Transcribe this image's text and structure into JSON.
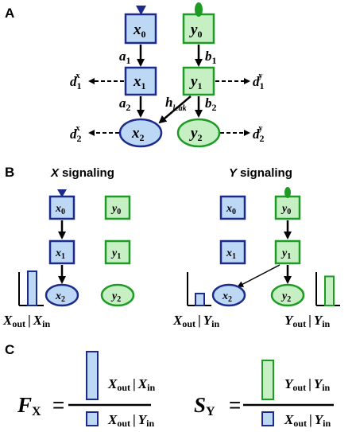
{
  "panels": {
    "a": "A",
    "b": "B",
    "c": "C"
  },
  "nodes": {
    "x": {
      "sym": "x",
      "subs": [
        "0",
        "1",
        "2"
      ]
    },
    "y": {
      "sym": "y",
      "subs": [
        "0",
        "1",
        "2"
      ]
    }
  },
  "rates": {
    "a1": {
      "sym": "a",
      "sub": "1"
    },
    "a2": {
      "sym": "a",
      "sub": "2"
    },
    "b1": {
      "sym": "b",
      "sub": "1"
    },
    "b2": {
      "sym": "b",
      "sub": "2"
    },
    "d1x": {
      "sym": "d",
      "sub": "1",
      "sup": "x"
    },
    "d2x": {
      "sym": "d",
      "sub": "2",
      "sup": "x"
    },
    "d1y": {
      "sym": "d",
      "sub": "1",
      "sup": "y"
    },
    "d2y": {
      "sym": "d",
      "sub": "2",
      "sup": "y"
    },
    "hleak": {
      "sym": "h",
      "sub": "leak"
    }
  },
  "signaling": {
    "x_title_sym": "X",
    "x_title_word": "signaling",
    "y_title_sym": "Y",
    "y_title_word": "signaling"
  },
  "labels": {
    "xout_xin": {
      "a": "X",
      "as": "out",
      "b": "X",
      "bs": "in"
    },
    "xout_yin": {
      "a": "X",
      "as": "out",
      "b": "Y",
      "bs": "in"
    },
    "yout_yin": {
      "a": "Y",
      "as": "out",
      "b": "Y",
      "bs": "in"
    },
    "bar_sep": "|"
  },
  "bars": {
    "x_signal_xout": 1.0,
    "y_signal_xout": 0.35,
    "y_signal_yout": 0.85
  },
  "formulas": {
    "F": {
      "sym": "F",
      "sub": "X",
      "eq": "="
    },
    "S": {
      "sym": "S",
      "sub": "Y",
      "eq": "="
    }
  },
  "colors": {
    "x_fill": "#bcd8f5",
    "x_stroke": "#1c2a8c",
    "y_fill": "#c6f0c3",
    "y_stroke": "#1e9b25"
  }
}
